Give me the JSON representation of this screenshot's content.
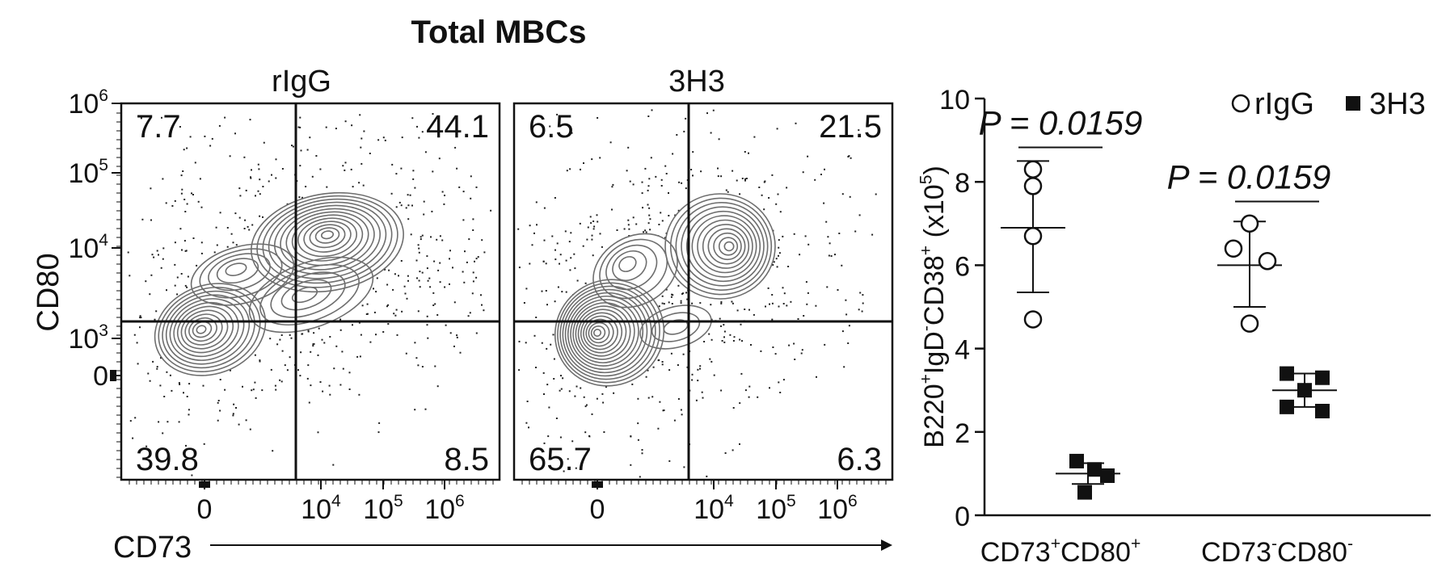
{
  "title": "Total MBCs",
  "x_axis_label": "CD73",
  "y_axis_label": "CD80",
  "flow_axis_ticks": {
    "y": [
      {
        "base": "10",
        "exp": "6"
      },
      {
        "base": "10",
        "exp": "5"
      },
      {
        "base": "10",
        "exp": "4"
      },
      {
        "base": "10",
        "exp": "3"
      },
      {
        "base": "0",
        "exp": ""
      }
    ],
    "x": [
      {
        "base": "0",
        "exp": ""
      },
      {
        "base": "10",
        "exp": "4"
      },
      {
        "base": "10",
        "exp": "5"
      },
      {
        "base": "10",
        "exp": "6"
      }
    ]
  },
  "panels": [
    {
      "label": "rIgG",
      "quadrants": {
        "upper_left": "7.7",
        "upper_right": "44.1",
        "lower_left": "39.8",
        "lower_right": "8.5"
      }
    },
    {
      "label": "3H3",
      "quadrants": {
        "upper_left": "6.5",
        "upper_right": "21.5",
        "lower_left": "65.7",
        "lower_right": "6.3"
      }
    }
  ],
  "chart_data": {
    "type": "scatter",
    "ylabel": {
      "parts": [
        "B220",
        "+",
        "IgD",
        "-",
        "CD38",
        "+",
        " (x10",
        "5",
        ")"
      ]
    },
    "ylim": [
      0,
      10
    ],
    "yticks": [
      "0",
      "2",
      "4",
      "6",
      "8",
      "10"
    ],
    "categories": [
      {
        "parts": [
          "CD73",
          "+",
          "CD80",
          "+"
        ]
      },
      {
        "parts": [
          "CD73",
          "-",
          "CD80",
          "-"
        ]
      }
    ],
    "legend": {
      "placement": "top-right",
      "items": [
        {
          "name": "rIgG",
          "marker": "open-circle"
        },
        {
          "name": "3H3",
          "marker": "filled-square"
        }
      ]
    },
    "series": [
      {
        "name": "rIgG",
        "marker": "open-circle",
        "groups": [
          {
            "category": 0,
            "values": [
              8.3,
              7.9,
              6.7,
              4.7
            ],
            "mean": 6.9,
            "sd": [
              5.35,
              8.5
            ]
          },
          {
            "category": 1,
            "values": [
              7.0,
              6.4,
              6.1,
              4.6
            ],
            "mean": 6.0,
            "sd": [
              5.0,
              7.05
            ]
          }
        ]
      },
      {
        "name": "3H3",
        "marker": "filled-square",
        "groups": [
          {
            "category": 0,
            "values": [
              1.3,
              1.1,
              0.95,
              0.55
            ],
            "mean": 1.0,
            "sd": [
              0.75,
              1.25
            ]
          },
          {
            "category": 1,
            "values": [
              3.4,
              3.3,
              3.0,
              2.6,
              2.5
            ],
            "mean": 3.0,
            "sd": [
              2.6,
              3.4
            ]
          }
        ]
      }
    ],
    "comparisons": [
      {
        "category": 0,
        "label": "P = 0.0159"
      },
      {
        "category": 1,
        "label": "P = 0.0159"
      }
    ]
  },
  "colors": {
    "ink": "#111111",
    "contour": "#6e6e6e",
    "dots": "#222222"
  }
}
